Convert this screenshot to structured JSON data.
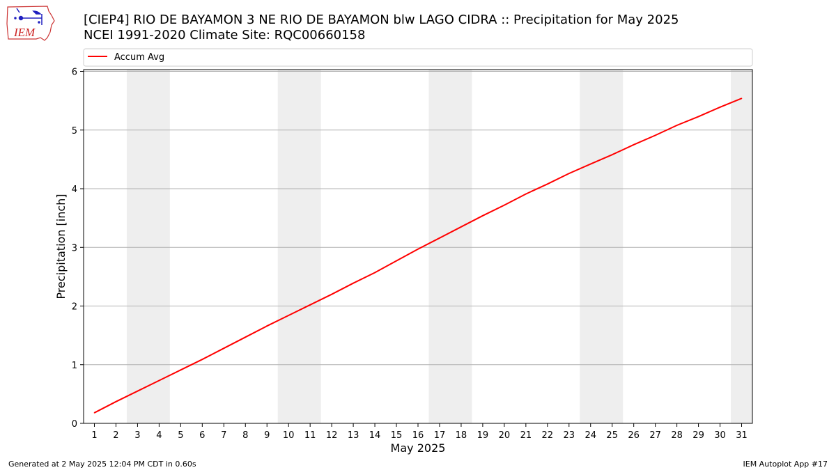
{
  "header": {
    "title_line1": "[CIEP4] RIO DE BAYAMON 3 NE RIO DE BAYAMON blw LAGO CIDRA :: Precipitation for May 2025",
    "title_line2": "NCEI 1991-2020 Climate Site: RQC00660158",
    "logo_text": "IEM"
  },
  "footer": {
    "left": "Generated at 2 May 2025 12:04 PM CDT in 0.60s",
    "right": "IEM Autoplot App #17"
  },
  "colors": {
    "line": "#ff0000",
    "weekend_band": "#eeeeee",
    "grid": "#b0b0b0"
  },
  "chart_data": {
    "type": "line",
    "xlabel": "May 2025",
    "ylabel": "Precipitation [inch]",
    "xlim": [
      0.5,
      31.5
    ],
    "ylim": [
      0,
      6.03
    ],
    "x_ticks": [
      1,
      2,
      3,
      4,
      5,
      6,
      7,
      8,
      9,
      10,
      11,
      12,
      13,
      14,
      15,
      16,
      17,
      18,
      19,
      20,
      21,
      22,
      23,
      24,
      25,
      26,
      27,
      28,
      29,
      30,
      31
    ],
    "y_ticks": [
      0,
      1,
      2,
      3,
      4,
      5,
      6
    ],
    "grid": "horizontal",
    "legend_position": "top, above plot",
    "shaded_weekend_ranges": [
      [
        2.5,
        4.5
      ],
      [
        9.5,
        11.5
      ],
      [
        16.5,
        18.5
      ],
      [
        23.5,
        25.5
      ],
      [
        30.5,
        31.5
      ]
    ],
    "series": [
      {
        "name": "Accum Avg",
        "color": "#ff0000",
        "x": [
          1,
          2,
          3,
          4,
          5,
          6,
          7,
          8,
          9,
          10,
          11,
          12,
          13,
          14,
          15,
          16,
          17,
          18,
          19,
          20,
          21,
          22,
          23,
          24,
          25,
          26,
          27,
          28,
          29,
          30,
          31
        ],
        "y": [
          0.18,
          0.37,
          0.55,
          0.73,
          0.91,
          1.09,
          1.28,
          1.47,
          1.66,
          1.84,
          2.02,
          2.2,
          2.39,
          2.57,
          2.77,
          2.97,
          3.16,
          3.35,
          3.54,
          3.72,
          3.91,
          4.08,
          4.26,
          4.42,
          4.58,
          4.75,
          4.91,
          5.08,
          5.23,
          5.39,
          5.54
        ]
      }
    ]
  }
}
